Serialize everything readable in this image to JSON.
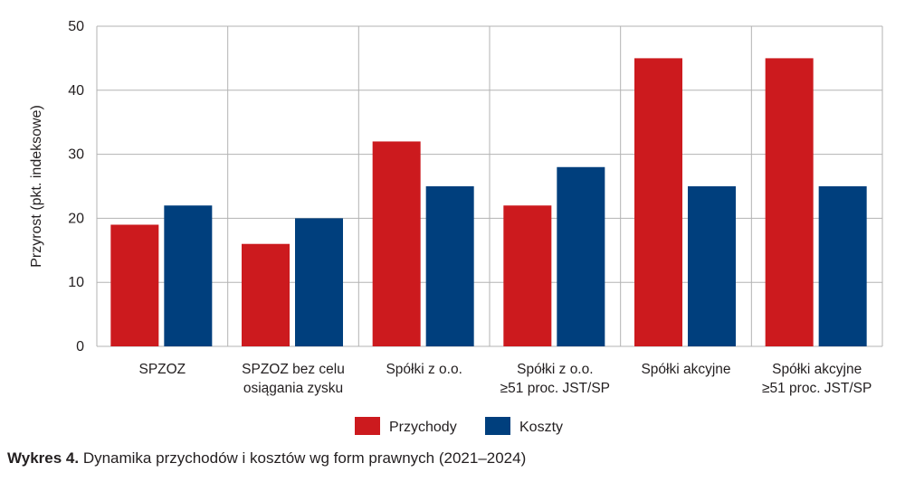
{
  "chart_data": {
    "type": "bar",
    "categories": [
      [
        "SPZOZ"
      ],
      [
        "SPZOZ bez celu",
        "osiągania zysku"
      ],
      [
        "Spółki z o.o."
      ],
      [
        "Spółki z o.o.",
        "≥51 proc. JST/SP"
      ],
      [
        "Spółki akcyjne"
      ],
      [
        "Spółki akcyjne",
        "≥51 proc. JST/SP"
      ]
    ],
    "series": [
      {
        "name": "Przychody",
        "color": "#cc1a1e",
        "values": [
          19,
          16,
          32,
          22,
          45,
          45
        ]
      },
      {
        "name": "Koszty",
        "color": "#003f7d",
        "values": [
          22,
          20,
          25,
          28,
          25,
          25
        ]
      }
    ],
    "ylabel": "Przyrost (pkt. indeksowe)",
    "xlabel": "",
    "ylim": [
      0,
      50
    ],
    "yticks": [
      0,
      10,
      20,
      30,
      40,
      50
    ],
    "grid": true,
    "legend_position": "bottom-center"
  },
  "caption": {
    "label": "Wykres 4.",
    "text": "Dynamika przychodów i kosztów wg form prawnych (2021–2024)"
  }
}
